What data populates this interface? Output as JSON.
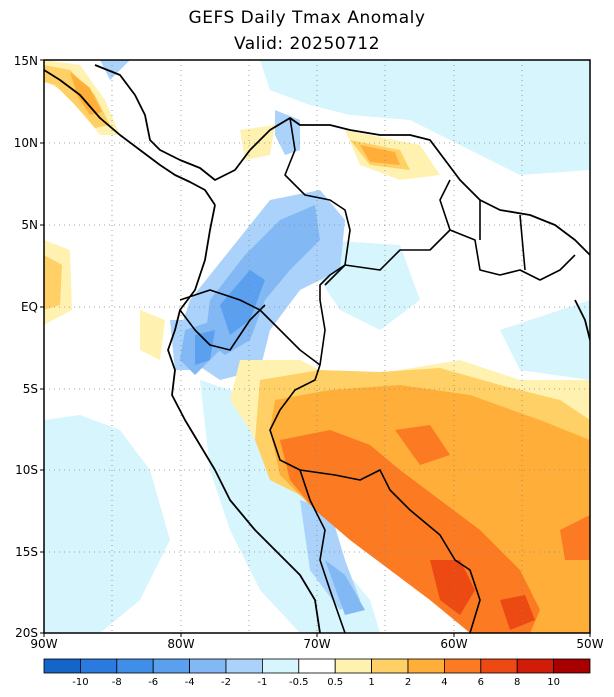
{
  "title": "GEFS Daily Tmax Anomaly",
  "subtitle": "Valid: 20250712",
  "lat_labels": [
    "15N",
    "10N",
    "5N",
    "EQ",
    "5S",
    "10S",
    "15S",
    "20S"
  ],
  "lon_labels": [
    "90W",
    "80W",
    "70W",
    "60W",
    "50W"
  ],
  "colorbar": {
    "labels": [
      "-10",
      "-8",
      "-6",
      "-4",
      "-2",
      "-1",
      "-0.5",
      "0.5",
      "1",
      "2",
      "4",
      "6",
      "8",
      "10"
    ],
    "colors": [
      "#1565c8",
      "#2a7ae0",
      "#3f8ee8",
      "#5aa0ee",
      "#82b8f4",
      "#aad2fa",
      "#d6f5fd",
      "#ffffff",
      "#fff2b0",
      "#ffd066",
      "#ffae3a",
      "#fb7a22",
      "#ec4a12",
      "#d01c08",
      "#a80000"
    ]
  },
  "map": {
    "region": "Northern South America and Central America",
    "lat_range": [
      "20S",
      "15N"
    ],
    "lon_range": [
      "90W",
      "50W"
    ],
    "grid": "dotted",
    "variable": "Daily Tmax Anomaly",
    "warm_anomaly_region": "central-south Brazil, Bolivia, Paraguay",
    "cool_anomaly_region": "Colombia, Ecuador, northern Peru"
  }
}
